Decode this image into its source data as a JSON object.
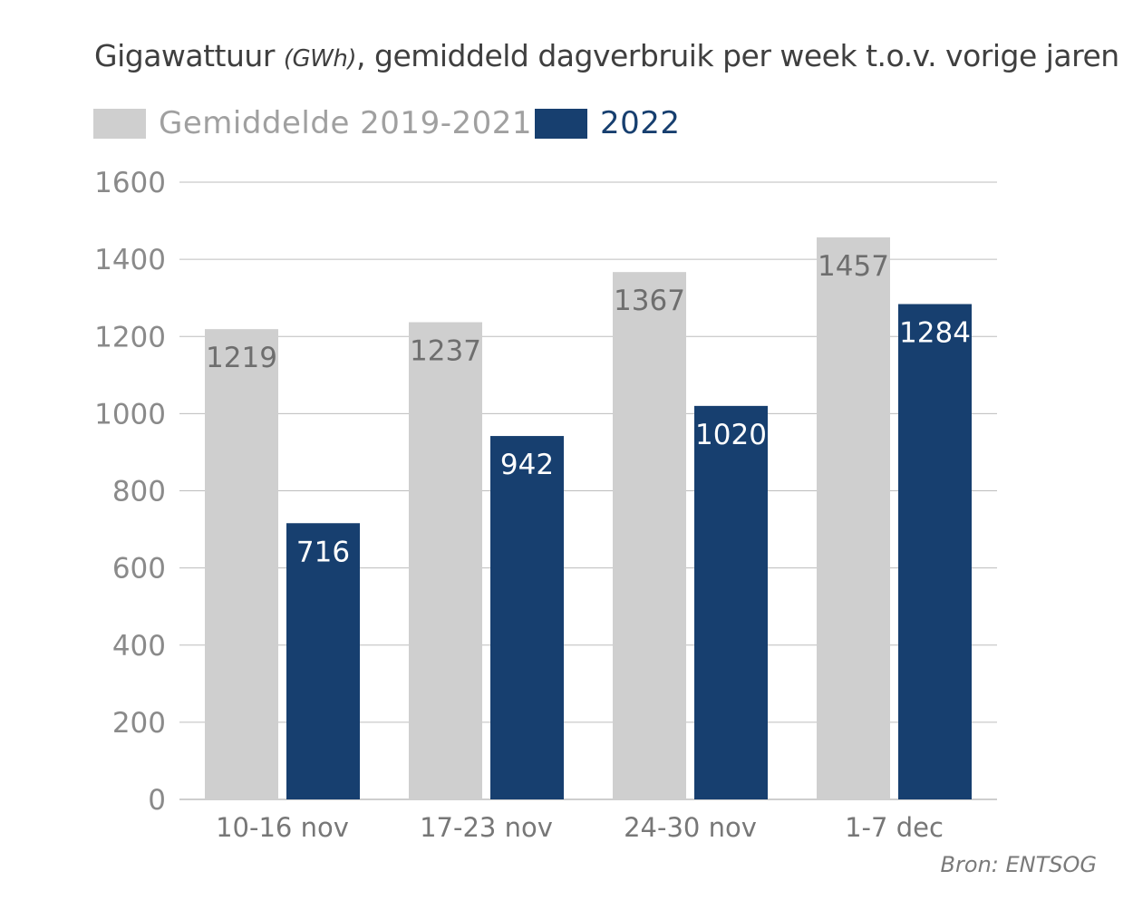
{
  "title": {
    "main_before": "Gigawattuur ",
    "unit": "(GWh)",
    "main_after": ", gemiddeld dagverbruik per week t.o.v. vorige jaren"
  },
  "source": "Bron: ENTSOG",
  "chart_data": {
    "type": "bar",
    "title": "Gigawattuur (GWh), gemiddeld dagverbruik per week t.o.v. vorige jaren",
    "xlabel": "",
    "ylabel": "",
    "ylim": [
      0,
      1600
    ],
    "yticks": [
      0,
      200,
      400,
      600,
      800,
      1000,
      1200,
      1400,
      1600
    ],
    "grid": true,
    "legend_placement": "top-left",
    "categories": [
      "10-16 nov",
      "17-23 nov",
      "24-30 nov",
      "1-7 dec"
    ],
    "series": [
      {
        "name": "Gemiddelde 2019-2021",
        "color": "#cfcfcf",
        "label_color": "#6e6e6e",
        "values": [
          1219,
          1237,
          1367,
          1457
        ]
      },
      {
        "name": "2022",
        "color": "#173f6f",
        "label_color": "#ffffff",
        "values": [
          716,
          942,
          1020,
          1284
        ]
      }
    ]
  }
}
